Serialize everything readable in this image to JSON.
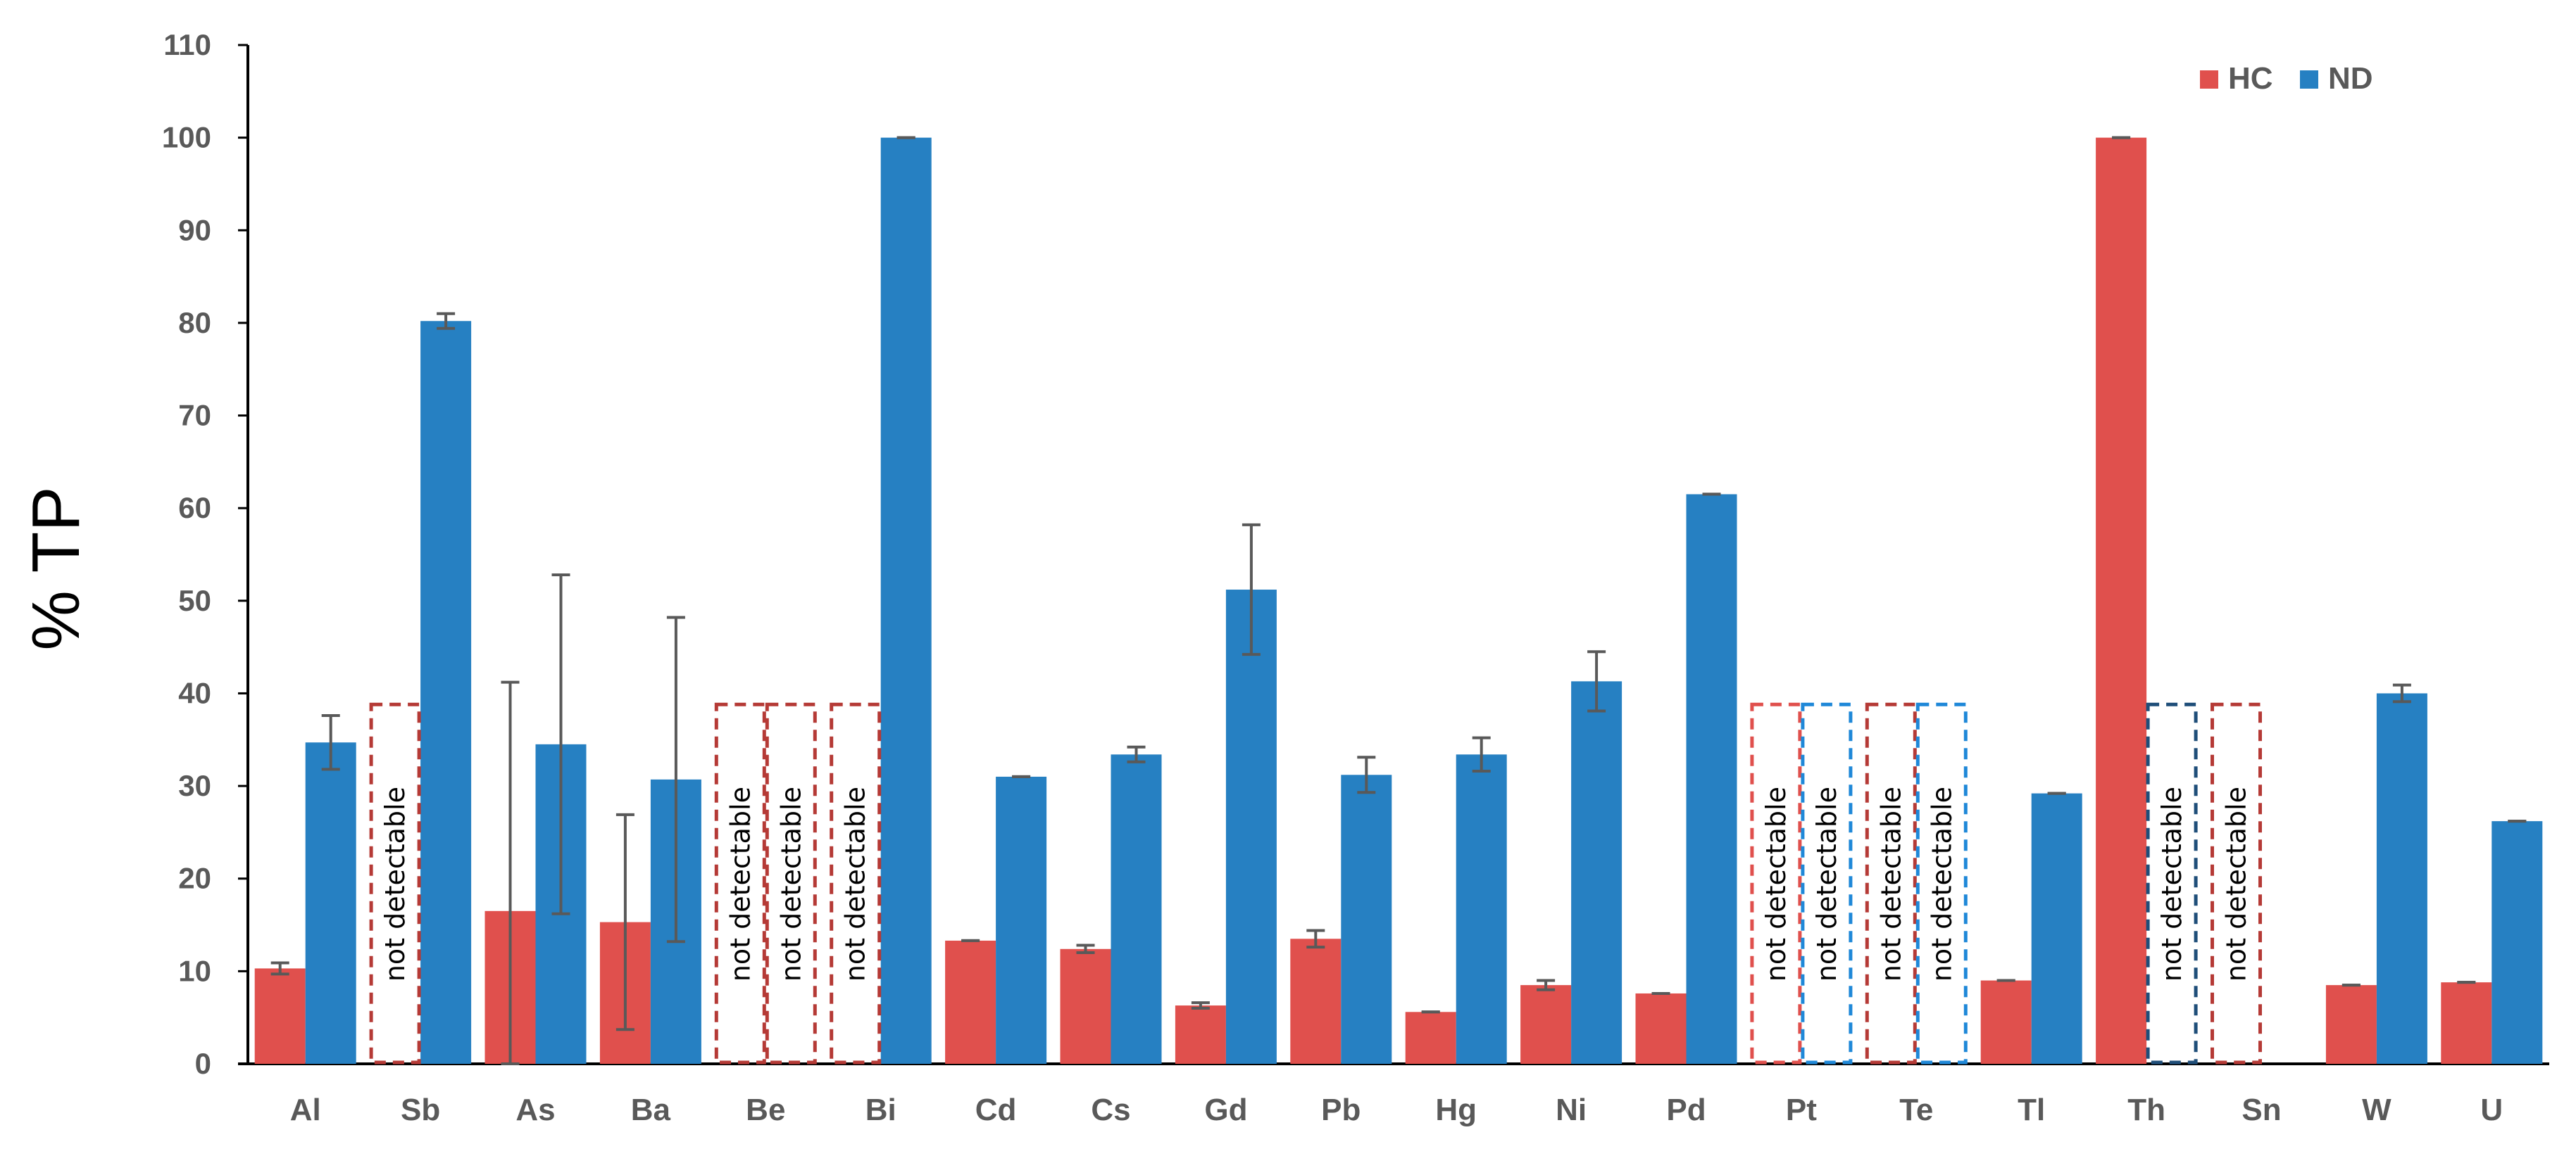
{
  "chart_data": {
    "type": "bar",
    "ylabel": "% TP",
    "xlabel": "",
    "title": "",
    "ylim": [
      0,
      110
    ],
    "yticks": [
      0,
      10,
      20,
      30,
      40,
      50,
      60,
      70,
      80,
      90,
      100,
      110
    ],
    "grid": false,
    "legend_position": "top-right",
    "categories": [
      "Al",
      "Sb",
      "As",
      "Ba",
      "Be",
      "Bi",
      "Cd",
      "Cs",
      "Gd",
      "Pb",
      "Hg",
      "Ni",
      "Pd",
      "Pt",
      "Te",
      "Tl",
      "Th",
      "Sn",
      "W",
      "U"
    ],
    "series": [
      {
        "name": "HC",
        "color": "#E0504D",
        "values": [
          10.3,
          null,
          16.5,
          15.3,
          null,
          null,
          13.3,
          12.4,
          6.3,
          13.5,
          5.6,
          8.5,
          7.6,
          null,
          null,
          9.0,
          100,
          null,
          8.5,
          8.8
        ],
        "errors": [
          0.6,
          null,
          24.7,
          11.6,
          null,
          null,
          0,
          0.4,
          0.3,
          0.9,
          0,
          0.5,
          0,
          null,
          null,
          0,
          0,
          null,
          0,
          0
        ]
      },
      {
        "name": "ND",
        "color": "#2680C2",
        "values": [
          34.7,
          80.2,
          34.5,
          30.7,
          null,
          100,
          31.0,
          33.4,
          51.2,
          31.2,
          33.4,
          41.3,
          61.5,
          null,
          null,
          29.2,
          null,
          null,
          40.0,
          26.2
        ],
        "errors": [
          2.9,
          0.8,
          18.3,
          17.5,
          null,
          0,
          0,
          0.8,
          7.0,
          1.9,
          1.8,
          3.2,
          0,
          null,
          null,
          0,
          null,
          null,
          0.9,
          0
        ]
      }
    ],
    "not_detectable_label": "not detectable",
    "not_detectable": [
      {
        "category": "Sb",
        "series": "HC",
        "color": "#B53A36"
      },
      {
        "category": "Be",
        "series": "HC",
        "color": "#B53A36"
      },
      {
        "category": "Be",
        "series": "ND",
        "color": "#B53A36"
      },
      {
        "category": "Bi",
        "series": "HC",
        "color": "#B53A36"
      },
      {
        "category": "Pt",
        "series": "HC",
        "color": "#E0504D"
      },
      {
        "category": "Pt",
        "series": "ND",
        "color": "#1F88D8"
      },
      {
        "category": "Te",
        "series": "HC",
        "color": "#B53A36"
      },
      {
        "category": "Te",
        "series": "ND",
        "color": "#1F88D8"
      },
      {
        "category": "Th",
        "series": "ND",
        "color": "#1F4E79"
      },
      {
        "category": "Sn",
        "series": "HC",
        "color": "#B53A36"
      }
    ]
  }
}
